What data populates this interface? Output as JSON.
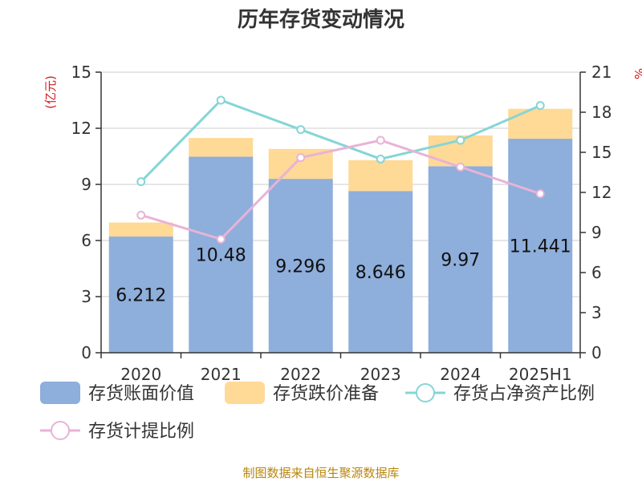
{
  "chart_data": {
    "type": "bar",
    "title": "历年存货变动情况",
    "categories": [
      "2020",
      "2021",
      "2022",
      "2023",
      "2024",
      "2025H1"
    ],
    "y_left": {
      "unit": "(亿元)",
      "ylim": [
        0,
        15
      ],
      "ticks": [
        "0",
        "3",
        "6",
        "9",
        "12",
        "15"
      ]
    },
    "y_right": {
      "unit": "%",
      "ylim": [
        0,
        21
      ],
      "ticks": [
        "0",
        "3",
        "6",
        "9",
        "12",
        "15",
        "18",
        "21"
      ]
    },
    "series": [
      {
        "name": "存货账面价值",
        "type": "bar",
        "stack": true,
        "axis": "left",
        "color": "#8eaedb",
        "values": [
          6.212,
          10.48,
          9.296,
          8.646,
          9.97,
          11.441
        ],
        "labels": [
          "6.212",
          "10.48",
          "9.296",
          "8.646",
          "9.97",
          "11.441"
        ]
      },
      {
        "name": "存货跌价准备",
        "type": "bar",
        "stack": true,
        "axis": "left",
        "color": "#ffd996",
        "values": [
          0.75,
          1.0,
          1.6,
          1.65,
          1.65,
          1.6
        ]
      },
      {
        "name": "存货占净资产比例",
        "type": "line",
        "axis": "right",
        "color": "#86d5d6",
        "values": [
          12.8,
          18.9,
          16.7,
          14.5,
          15.9,
          18.5
        ]
      },
      {
        "name": "存货计提比例",
        "type": "line",
        "axis": "right",
        "color": "#e8b3d6",
        "values": [
          10.3,
          8.5,
          14.6,
          15.9,
          13.9,
          11.9
        ]
      }
    ],
    "grid": true,
    "legend": "bottom"
  },
  "source": "制图数据来自恒生聚源数据库"
}
